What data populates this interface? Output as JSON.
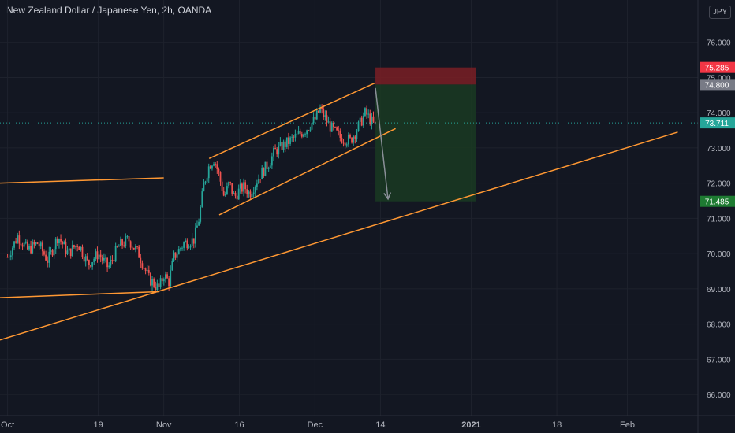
{
  "header": {
    "title": "New Zealand Dollar / Japanese Yen, 2h, OANDA",
    "currency_badge": "JPY"
  },
  "colors": {
    "background": "#131722",
    "grid": "#1e222d",
    "text": "#b2b5be",
    "candle_up": "#26a69a",
    "candle_down": "#ef5350",
    "trendline": "#ff9833",
    "stop_zone": "#7a1f24",
    "target_zone": "#1a3a22",
    "current_price": "#26a69a",
    "stop_tag": "#f23645",
    "entry_tag": "#787b86",
    "target_tag": "#1e7b32"
  },
  "chart_data": {
    "type": "candlestick",
    "symbol": "NZDJPY",
    "interval": "2h",
    "ylim": [
      65.4,
      77.2
    ],
    "y_ticks": [
      "66.000",
      "67.000",
      "68.000",
      "69.000",
      "70.000",
      "71.000",
      "72.000",
      "73.000",
      "74.000",
      "75.000",
      "76.000"
    ],
    "x_ticks": [
      {
        "label": "Oct",
        "day": 0
      },
      {
        "label": "19",
        "day": 18
      },
      {
        "label": "Nov",
        "day": 31
      },
      {
        "label": "16",
        "day": 46
      },
      {
        "label": "Dec",
        "day": 61
      },
      {
        "label": "14",
        "day": 74
      },
      {
        "label": "2021",
        "day": 92
      },
      {
        "label": "18",
        "day": 109
      },
      {
        "label": "Feb",
        "day": 123
      }
    ],
    "x_range_days": [
      -1.5,
      137
    ],
    "price_path": [
      [
        0,
        69.9
      ],
      [
        2,
        70.5
      ],
      [
        4,
        70.1
      ],
      [
        6,
        70.3
      ],
      [
        8,
        69.8
      ],
      [
        10,
        70.5
      ],
      [
        12,
        70.0
      ],
      [
        14,
        70.3
      ],
      [
        16,
        69.7
      ],
      [
        18,
        70.0
      ],
      [
        20,
        69.6
      ],
      [
        22,
        70.2
      ],
      [
        24,
        70.4
      ],
      [
        26,
        70.0
      ],
      [
        28,
        69.3
      ],
      [
        30,
        69.0
      ],
      [
        31,
        69.4
      ],
      [
        32,
        69.2
      ],
      [
        33,
        69.9
      ],
      [
        35,
        70.3
      ],
      [
        37,
        70.4
      ],
      [
        38,
        71.0
      ],
      [
        39,
        72.0
      ],
      [
        40,
        72.5
      ],
      [
        41,
        72.7
      ],
      [
        42,
        72.2
      ],
      [
        43,
        71.6
      ],
      [
        44,
        72.0
      ],
      [
        45,
        71.6
      ],
      [
        46,
        71.8
      ],
      [
        47,
        71.9
      ],
      [
        48,
        71.7
      ],
      [
        50,
        72.2
      ],
      [
        52,
        72.6
      ],
      [
        53,
        72.9
      ],
      [
        55,
        73.1
      ],
      [
        57,
        73.3
      ],
      [
        59,
        73.5
      ],
      [
        61,
        73.8
      ],
      [
        62,
        74.1
      ],
      [
        64,
        73.6
      ],
      [
        66,
        73.3
      ],
      [
        68,
        73.2
      ],
      [
        70,
        73.7
      ],
      [
        71,
        74.0
      ],
      [
        72,
        73.8
      ],
      [
        73,
        73.6
      ]
    ],
    "trend_lines": [
      {
        "name": "left-horizontal-line",
        "x1": -1.5,
        "y1": 72.0,
        "x2": 31,
        "y2": 72.15
      },
      {
        "name": "lower-horizontal-line",
        "x1": -1.5,
        "y1": 68.75,
        "x2": 30,
        "y2": 68.92
      },
      {
        "name": "long-ascending-trendline",
        "x1": -1.5,
        "y1": 67.55,
        "x2": 133,
        "y2": 73.45
      },
      {
        "name": "channel-upper-line",
        "x1": 40,
        "y1": 72.7,
        "x2": 73,
        "y2": 74.85
      },
      {
        "name": "channel-lower-line",
        "x1": 42,
        "y1": 71.1,
        "x2": 77,
        "y2": 73.55
      }
    ],
    "short_position": {
      "x_start_day": 73,
      "x_end_day": 93,
      "entry": 74.8,
      "stop": 75.285,
      "target": 71.485
    },
    "projection_arrow": {
      "x1": 73,
      "y1": 74.7,
      "x2": 75.5,
      "y2": 71.55
    },
    "price_tags": [
      {
        "name": "stop-price-tag",
        "label": "75.285",
        "value": 75.285,
        "color": "#f23645"
      },
      {
        "name": "entry-price-tag",
        "label": "74.800",
        "value": 74.8,
        "color": "#787b86"
      },
      {
        "name": "current-price-tag",
        "label": "73.711",
        "value": 73.711,
        "color": "#26a69a"
      },
      {
        "name": "target-price-tag",
        "label": "71.485",
        "value": 71.485,
        "color": "#1e7b32"
      }
    ],
    "current_price": 73.711
  }
}
